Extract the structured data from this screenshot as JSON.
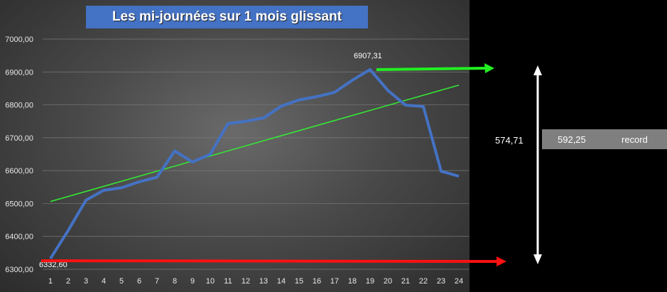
{
  "chart_data": {
    "type": "line",
    "title": "Les mi-journées sur 1 mois glissant",
    "xlabel": "",
    "ylabel": "",
    "ylim": [
      6300,
      7000
    ],
    "yticks": [
      "6300,00",
      "6400,00",
      "6500,00",
      "6600,00",
      "6700,00",
      "6800,00",
      "6900,00",
      "7000,00"
    ],
    "categories": [
      "1",
      "2",
      "3",
      "4",
      "5",
      "6",
      "7",
      "8",
      "9",
      "10",
      "11",
      "12",
      "13",
      "14",
      "15",
      "16",
      "17",
      "18",
      "19",
      "20",
      "21",
      "22",
      "23",
      "24"
    ],
    "series": [
      {
        "name": "",
        "color": "#4472c4",
        "values": [
          6332.6,
          6418,
          6510,
          6540,
          6548,
          6566,
          6580,
          6660,
          6626,
          6650,
          6743,
          6750,
          6760,
          6796,
          6815,
          6825,
          6838,
          6875,
          6907.31,
          6844,
          6799,
          6795,
          6598,
          6583
        ]
      }
    ],
    "trendline": {
      "color": "#33ee33",
      "start": 6506,
      "end": 6860
    },
    "data_labels": {
      "min": "6332,60",
      "max": "6907,31"
    },
    "grid": true,
    "legend": "none"
  },
  "annotations": {
    "green_arrow_color": "#22ee22",
    "red_arrow_color": "#ff1111",
    "span_arrow_color": "#ffffff",
    "span_value": "574,71",
    "record_value": "592,25",
    "record_label": "record",
    "record_bg": "#7f7f7f"
  }
}
